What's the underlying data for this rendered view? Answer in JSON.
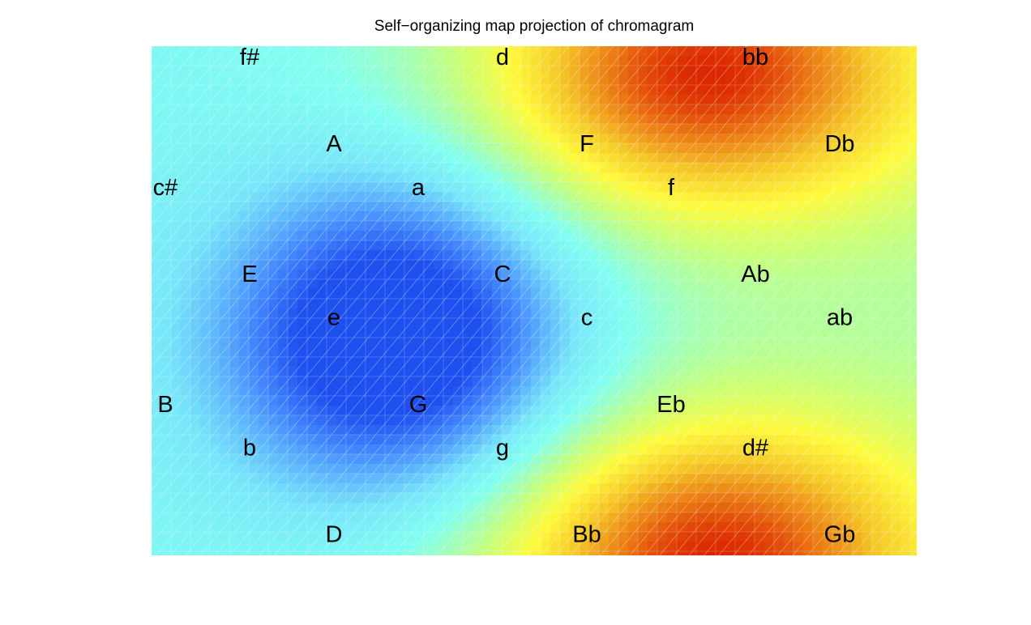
{
  "chart_data": {
    "type": "heatmap",
    "title": "Self−organizing map projection of chromagram",
    "xlabel": "",
    "ylabel": "",
    "colormap": "jet",
    "colorbar": false,
    "axes_visible": false,
    "grid": false,
    "field_description": "U-matrix style surface: blue basin (low) at lower-left-center, red peaks (high) at top-right and bottom-center-right, cyan/yellow transitions elsewhere",
    "labels": [
      {
        "text": "f#",
        "col": 1,
        "row": 0
      },
      {
        "text": "d",
        "col": 4,
        "row": 0
      },
      {
        "text": "bb",
        "col": 7,
        "row": 0
      },
      {
        "text": "A",
        "col": 2,
        "row": 2
      },
      {
        "text": "F",
        "col": 5,
        "row": 2
      },
      {
        "text": "Db",
        "col": 8,
        "row": 2
      },
      {
        "text": "c#",
        "col": 0,
        "row": 3
      },
      {
        "text": "a",
        "col": 3,
        "row": 3
      },
      {
        "text": "f",
        "col": 6,
        "row": 3
      },
      {
        "text": "E",
        "col": 1,
        "row": 5
      },
      {
        "text": "C",
        "col": 4,
        "row": 5
      },
      {
        "text": "Ab",
        "col": 7,
        "row": 5
      },
      {
        "text": "e",
        "col": 2,
        "row": 6
      },
      {
        "text": "c",
        "col": 5,
        "row": 6
      },
      {
        "text": "ab",
        "col": 8,
        "row": 6
      },
      {
        "text": "B",
        "col": 0,
        "row": 8
      },
      {
        "text": "G",
        "col": 3,
        "row": 8
      },
      {
        "text": "Eb",
        "col": 6,
        "row": 8
      },
      {
        "text": "b",
        "col": 1,
        "row": 9
      },
      {
        "text": "g",
        "col": 4,
        "row": 9
      },
      {
        "text": "d#",
        "col": 7,
        "row": 9
      },
      {
        "text": "D",
        "col": 2,
        "row": 11
      },
      {
        "text": "Bb",
        "col": 5,
        "row": 11
      },
      {
        "text": "Gb",
        "col": 8,
        "row": 11
      }
    ],
    "peaks": [
      {
        "kind": "low",
        "col": 2.75,
        "row": 6.5,
        "strength": 0.55
      },
      {
        "kind": "high",
        "col": 6.35,
        "row": 0.4,
        "strength": 0.55
      },
      {
        "kind": "high",
        "col": 6.45,
        "row": 11.6,
        "strength": 0.55
      }
    ]
  }
}
